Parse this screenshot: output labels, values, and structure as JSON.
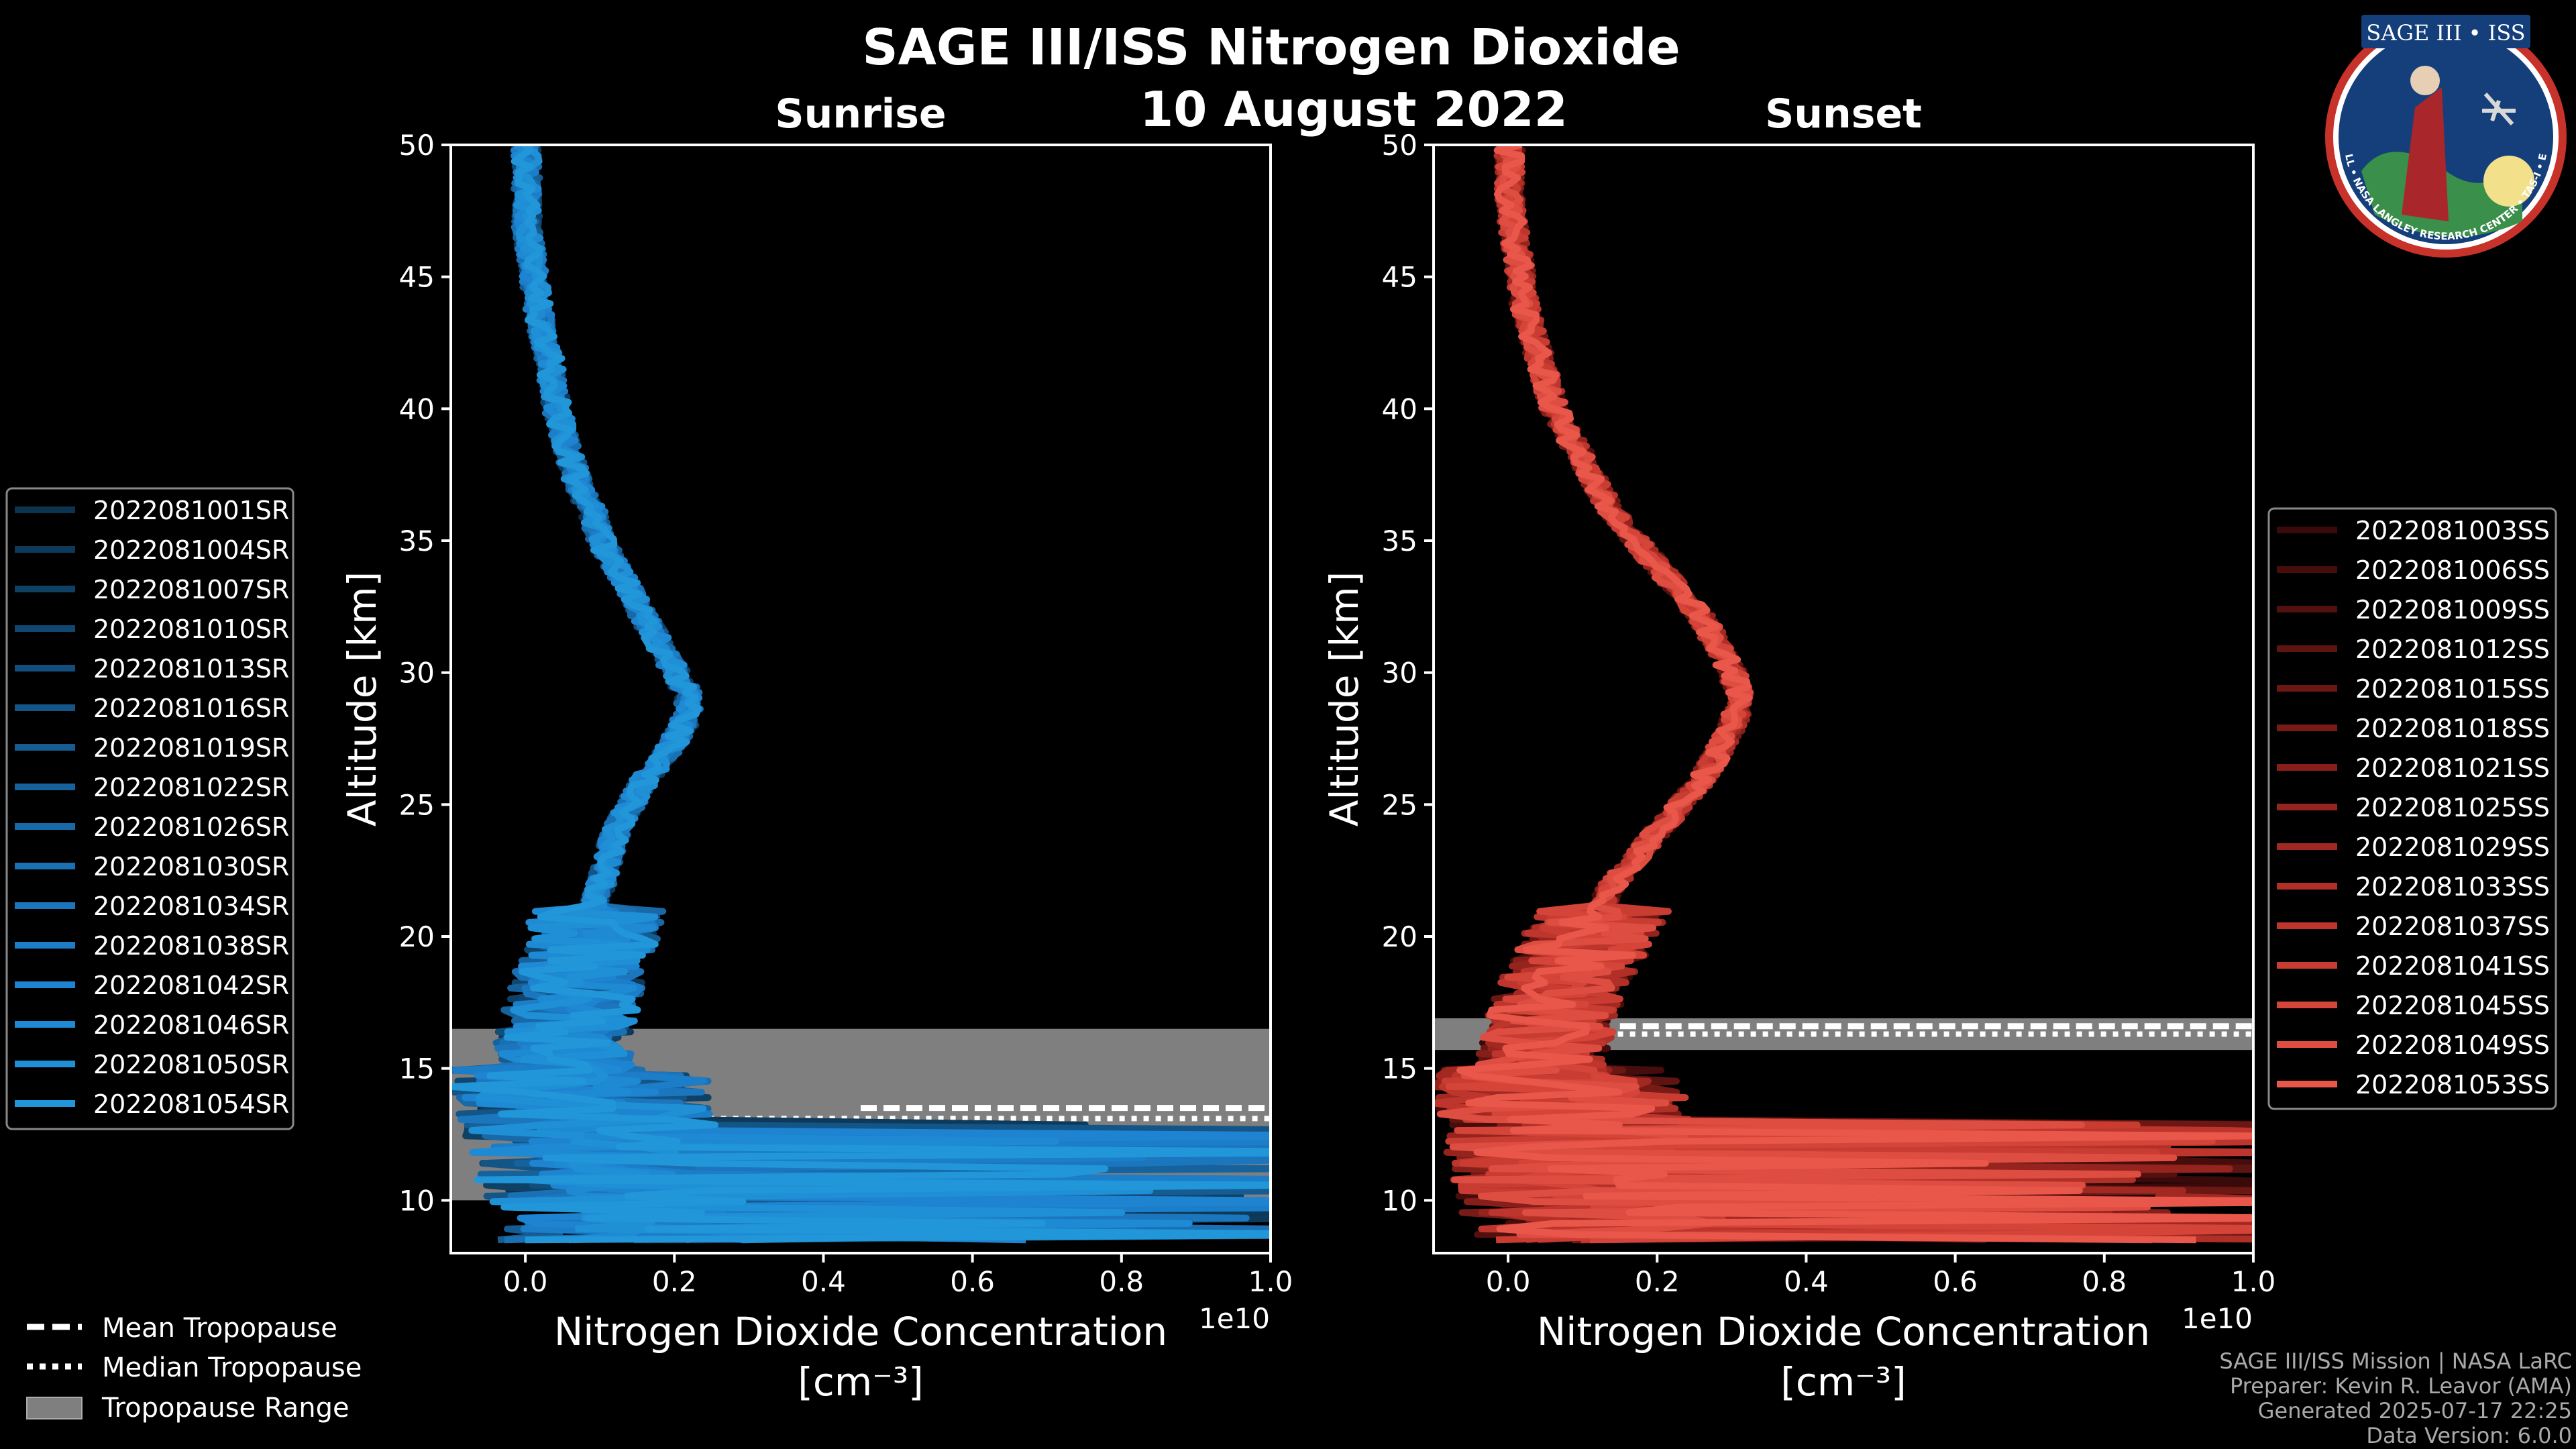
{
  "title": "SAGE III/ISS Nitrogen Dioxide",
  "date": "10 August 2022",
  "colors": {
    "background": "#000000",
    "sunrise": "#1f93d6",
    "sunset": "#e9584a",
    "tropopause_range": "#7f7f7f",
    "text": "#ffffff",
    "footer": "#a9a9a9"
  },
  "panels": [
    {
      "id": "sunrise",
      "subtitle": "Sunrise",
      "ylabel": "Altitude [km]",
      "xlabel_line1": "Nitrogen Dioxide Concentration",
      "xlabel_line2": "[cm⁻³]",
      "offset_label": "1e10",
      "xlim": [
        -0.1,
        1.0
      ],
      "ylim": [
        8,
        50
      ],
      "xticks": [
        "0.0",
        "0.2",
        "0.4",
        "0.6",
        "0.8",
        "1.0"
      ],
      "yticks": [
        "10",
        "15",
        "20",
        "25",
        "30",
        "35",
        "40",
        "45",
        "50"
      ]
    },
    {
      "id": "sunset",
      "subtitle": "Sunset",
      "ylabel": "Altitude [km]",
      "xlabel_line1": "Nitrogen Dioxide Concentration",
      "xlabel_line2": "[cm⁻³]",
      "offset_label": "1e10",
      "xlim": [
        -0.1,
        1.0
      ],
      "ylim": [
        8,
        50
      ],
      "xticks": [
        "0.0",
        "0.2",
        "0.4",
        "0.6",
        "0.8",
        "1.0"
      ],
      "yticks": [
        "10",
        "15",
        "20",
        "25",
        "30",
        "35",
        "40",
        "45",
        "50"
      ]
    }
  ],
  "legend_main": [
    {
      "label": "Mean Tropopause",
      "style": "dashed"
    },
    {
      "label": "Median Tropopause",
      "style": "dotted"
    },
    {
      "label": "Tropopause Range",
      "style": "patch"
    }
  ],
  "footer": [
    "SAGE III/ISS Mission | NASA LaRC",
    "Preparer: Kevin R. Leavor (AMA)",
    "Generated 2025-07-17 22:25",
    "Data Version: 6.0.0"
  ],
  "logo": {
    "title": "SAGE III • ISS",
    "ring_text": "BALL • NASA LANGLEY RESEARCH CENTER • TAS-I • ESA"
  },
  "chart_data": [
    {
      "type": "line",
      "panel": "sunrise",
      "units_x": "1e10 cm^-3",
      "units_y": "km",
      "altitude_km": [
        9,
        10,
        11,
        12,
        13,
        14,
        15,
        16,
        17,
        18,
        19,
        20,
        21,
        22,
        23,
        24,
        25,
        26,
        27,
        28,
        29,
        30,
        31,
        32,
        33,
        34,
        35,
        36,
        37,
        38,
        39,
        40,
        41,
        42,
        43,
        44,
        45,
        46,
        47,
        48,
        49,
        50
      ],
      "typical_profile": [
        0.12,
        0.1,
        0.09,
        0.08,
        0.07,
        0.06,
        0.05,
        0.04,
        0.05,
        0.06,
        0.07,
        0.08,
        0.09,
        0.1,
        0.11,
        0.12,
        0.14,
        0.16,
        0.19,
        0.21,
        0.22,
        0.2,
        0.18,
        0.16,
        0.14,
        0.12,
        0.1,
        0.09,
        0.07,
        0.06,
        0.05,
        0.04,
        0.035,
        0.03,
        0.02,
        0.015,
        0.01,
        0.005,
        0.0,
        0.0,
        0.0,
        0.0
      ],
      "series": [
        {
          "name": "2022081001SR",
          "color": "#0c3450"
        },
        {
          "name": "2022081004SR",
          "color": "#0d3a5b"
        },
        {
          "name": "2022081007SR",
          "color": "#0f4166"
        },
        {
          "name": "2022081010SR",
          "color": "#104771"
        },
        {
          "name": "2022081013SR",
          "color": "#124e7c"
        },
        {
          "name": "2022081016SR",
          "color": "#135587"
        },
        {
          "name": "2022081019SR",
          "color": "#155c92"
        },
        {
          "name": "2022081022SR",
          "color": "#16629d"
        },
        {
          "name": "2022081026SR",
          "color": "#1869a8"
        },
        {
          "name": "2022081030SR",
          "color": "#1970b3"
        },
        {
          "name": "2022081034SR",
          "color": "#1b76be"
        },
        {
          "name": "2022081038SR",
          "color": "#1c7dc9"
        },
        {
          "name": "2022081042SR",
          "color": "#1e84d1"
        },
        {
          "name": "2022081046SR",
          "color": "#1f8ad4"
        },
        {
          "name": "2022081050SR",
          "color": "#2090d6"
        },
        {
          "name": "2022081054SR",
          "color": "#2196d9"
        }
      ],
      "tropopause": {
        "mean_km": 13.5,
        "median_km": 13.1,
        "range_km": [
          10.0,
          16.5
        ],
        "mean_x_start": 0.45,
        "median_x_start": 0.23
      }
    },
    {
      "type": "line",
      "panel": "sunset",
      "units_x": "1e10 cm^-3",
      "units_y": "km",
      "altitude_km": [
        9,
        10,
        11,
        12,
        13,
        14,
        15,
        16,
        17,
        18,
        19,
        20,
        21,
        22,
        23,
        24,
        25,
        26,
        27,
        28,
        29,
        30,
        31,
        32,
        33,
        34,
        35,
        36,
        37,
        38,
        39,
        40,
        41,
        42,
        43,
        44,
        45,
        46,
        47,
        48,
        49,
        50
      ],
      "typical_profile": [
        0.1,
        0.09,
        0.08,
        0.07,
        0.06,
        0.05,
        0.04,
        0.04,
        0.05,
        0.06,
        0.08,
        0.1,
        0.12,
        0.14,
        0.17,
        0.2,
        0.23,
        0.26,
        0.28,
        0.3,
        0.31,
        0.3,
        0.28,
        0.26,
        0.23,
        0.2,
        0.17,
        0.14,
        0.12,
        0.1,
        0.08,
        0.06,
        0.05,
        0.04,
        0.03,
        0.02,
        0.015,
        0.01,
        0.005,
        0.0,
        0.0,
        0.0
      ],
      "series": [
        {
          "name": "2022081003SS",
          "color": "#3a0a0a"
        },
        {
          "name": "2022081006SS",
          "color": "#460d0c"
        },
        {
          "name": "2022081009SS",
          "color": "#52100e"
        },
        {
          "name": "2022081012SS",
          "color": "#5e1410"
        },
        {
          "name": "2022081015SS",
          "color": "#6b1713"
        },
        {
          "name": "2022081018SS",
          "color": "#781b16"
        },
        {
          "name": "2022081021SS",
          "color": "#861f1a"
        },
        {
          "name": "2022081025SS",
          "color": "#94241d"
        },
        {
          "name": "2022081029SS",
          "color": "#a22922"
        },
        {
          "name": "2022081033SS",
          "color": "#b02f27"
        },
        {
          "name": "2022081037SS",
          "color": "#bd352c"
        },
        {
          "name": "2022081041SS",
          "color": "#c93c32"
        },
        {
          "name": "2022081045SS",
          "color": "#d44439"
        },
        {
          "name": "2022081049SS",
          "color": "#de4d41"
        },
        {
          "name": "2022081053SS",
          "color": "#e8574a"
        }
      ],
      "tropopause": {
        "mean_km": 16.6,
        "median_km": 16.3,
        "range_km": [
          15.7,
          16.9
        ],
        "mean_x_start": 0.15,
        "median_x_start": 0.05
      }
    }
  ]
}
